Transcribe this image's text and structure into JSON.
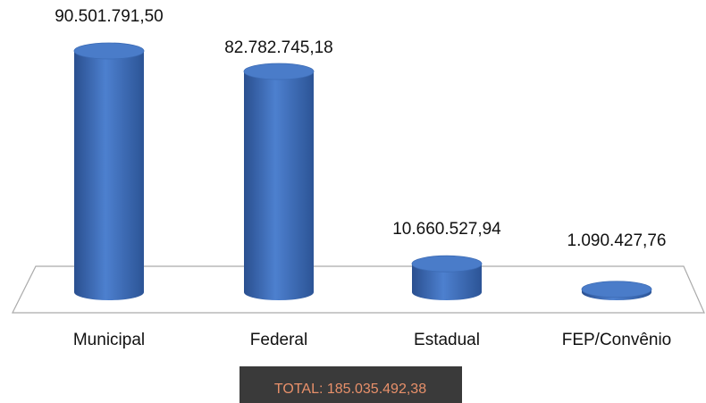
{
  "chart_data": {
    "type": "cylinder",
    "categories": [
      "Municipal",
      "Federal",
      "Estadual",
      "FEP/Convênio"
    ],
    "values": [
      90501791.5,
      82782745.18,
      10660527.94,
      1090427.76
    ],
    "value_labels": [
      "90.501.791,50",
      "82.782.745,18",
      "10.660.527,94",
      "1.090.427,76"
    ],
    "color": "#4a7cc9",
    "annotation": "TOTAL:  185.035.492,38"
  }
}
